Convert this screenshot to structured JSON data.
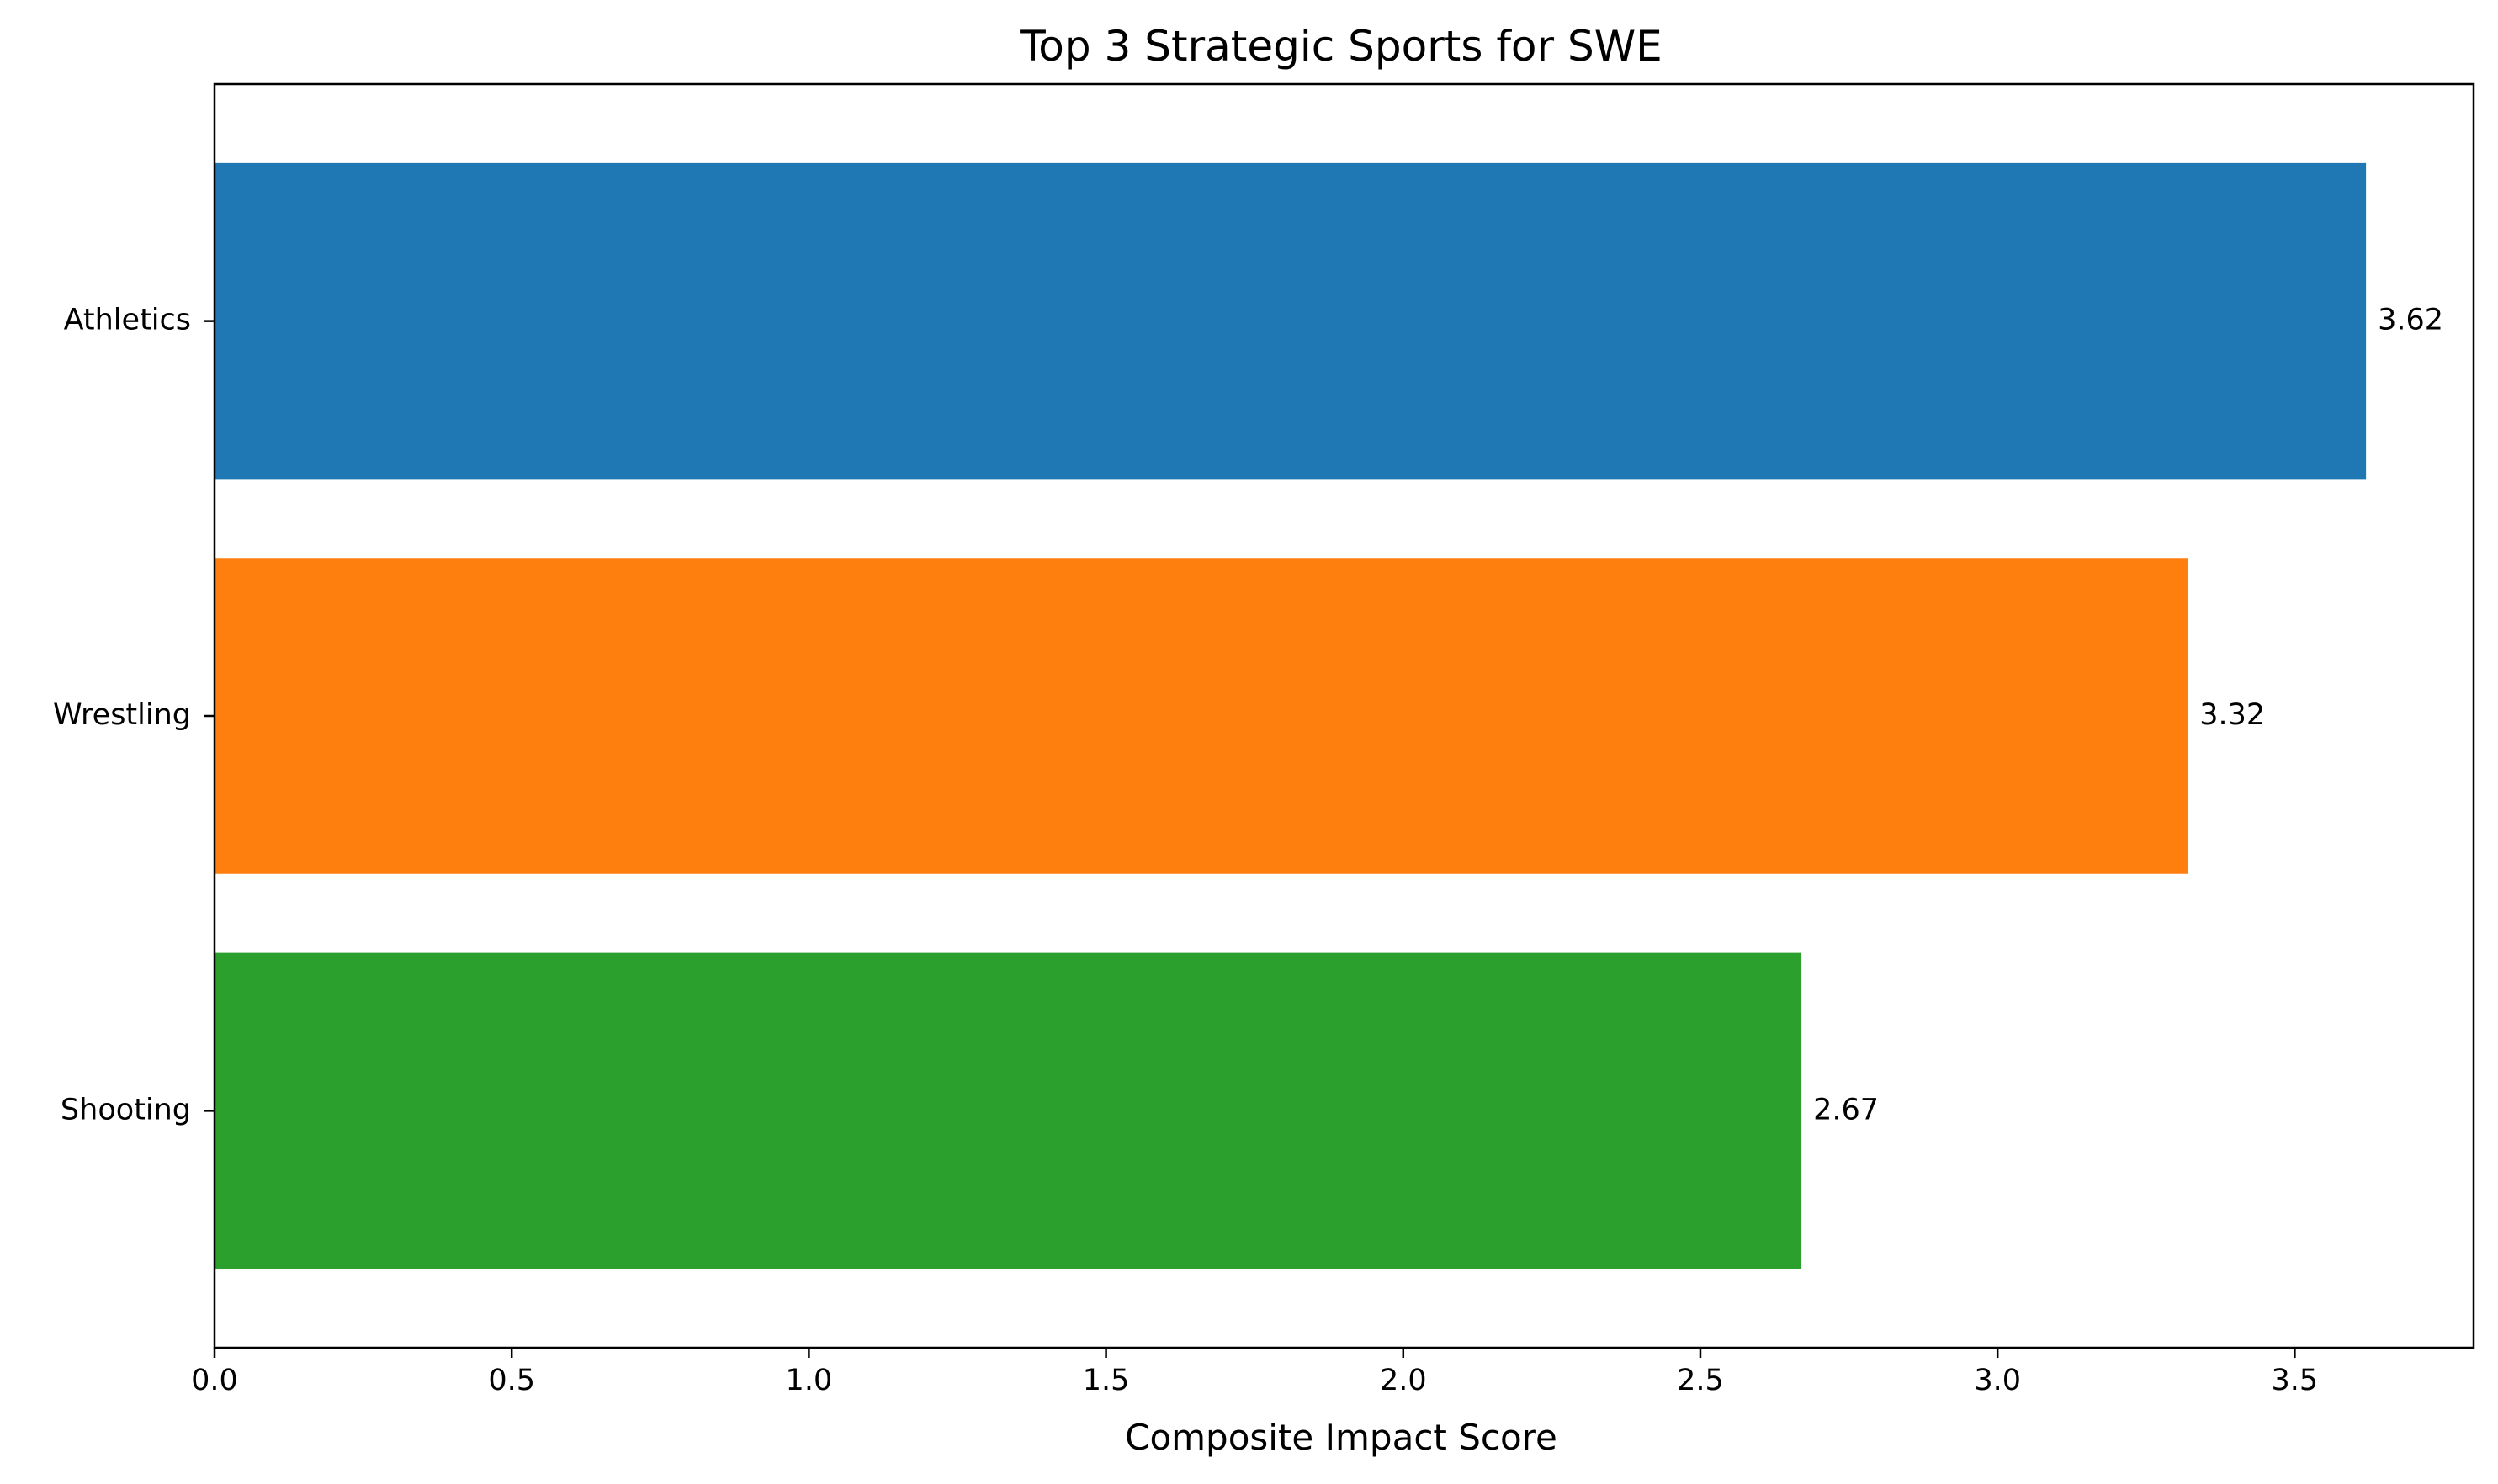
{
  "chart_data": {
    "type": "bar",
    "orientation": "horizontal",
    "title": "Top 3 Strategic Sports for SWE",
    "xlabel": "Composite Impact Score",
    "ylabel": "",
    "categories": [
      "Athletics",
      "Wrestling",
      "Shooting"
    ],
    "values": [
      3.62,
      3.32,
      2.67
    ],
    "value_labels": [
      "3.62",
      "3.32",
      "2.67"
    ],
    "colors": [
      "#1f77b4",
      "#ff7f0e",
      "#2ca02c"
    ],
    "xlim": [
      0,
      3.801
    ],
    "xticks": [
      0.0,
      0.5,
      1.0,
      1.5,
      2.0,
      2.5,
      3.0,
      3.5
    ],
    "xtick_labels": [
      "0.0",
      "0.5",
      "1.0",
      "1.5",
      "2.0",
      "2.5",
      "3.0",
      "3.5"
    ],
    "grid": false,
    "legend": "none"
  }
}
